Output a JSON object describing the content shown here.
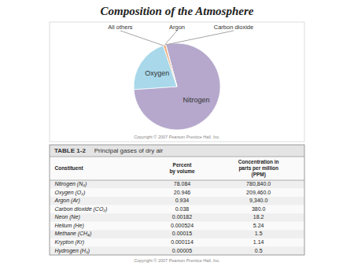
{
  "chart_data": [
    {
      "type": "pie",
      "title": "Composition of the Atmosphere",
      "categories": [
        "Nitrogen",
        "Oxygen",
        "All others",
        "Argon",
        "Carbon dioxide"
      ],
      "values": [
        78.084,
        20.946,
        0.003,
        0.934,
        0.038
      ],
      "colors": [
        "#b5a8cc",
        "#a8d8ea",
        "#c8b090",
        "#e8a878",
        "#cc3300"
      ],
      "annotations": [
        "Copyright © 2007 Pearson Prentice Hall, Inc."
      ]
    },
    {
      "type": "table",
      "title": "TABLE 1-2",
      "subtitle": "Principal gases of dry air",
      "columns": [
        "Constituent",
        "Percent\nby volume",
        "Concentration in\nparts per million\n(PPM)"
      ],
      "rows": [
        [
          "Nitrogen (N₂)",
          "78.084",
          "780,840.0"
        ],
        [
          "Oxygen (O₂)",
          "20.946",
          "209,460.0"
        ],
        [
          "Argon (Ar)",
          "0.934",
          "9,340.0"
        ],
        [
          "Carbon dioxide (CO₂)",
          "0.038",
          "380.0"
        ],
        [
          "Neon (Ne)",
          "0.00182",
          "18.2"
        ],
        [
          "Helium (He)",
          "0.000524",
          "5.24"
        ],
        [
          "Methane (CH₄)",
          "0.00015",
          "1.5"
        ],
        [
          "Krypton (Kr)",
          "0.000114",
          "1.14"
        ],
        [
          "Hydrogen (H₂)",
          "0.00005",
          "0.5"
        ]
      ],
      "annotations": [
        "Copyright © 2007 Pearson Prentice Hall, Inc."
      ]
    }
  ]
}
